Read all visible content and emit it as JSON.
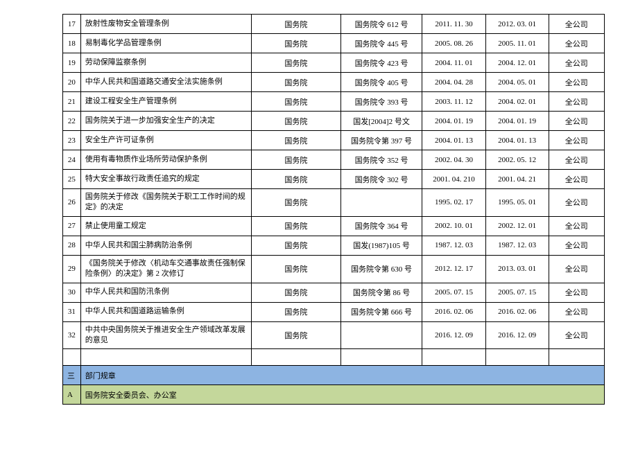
{
  "rows": [
    {
      "num": "17",
      "title": "放射性废物安全管理条例",
      "issuer": "国务院",
      "doc": "国务院令 612 号",
      "date1": "2011. 11. 30",
      "date2": "2012. 03. 01",
      "scope": "全公司"
    },
    {
      "num": "18",
      "title": "易制毒化学品管理条例",
      "issuer": "国务院",
      "doc": "国务院令 445 号",
      "date1": "2005. 08. 26",
      "date2": "2005. 11. 01",
      "scope": "全公司"
    },
    {
      "num": "19",
      "title": "劳动保障监察条例",
      "issuer": "国务院",
      "doc": "国务院令 423 号",
      "date1": "2004. 11. 01",
      "date2": "2004. 12. 01",
      "scope": "全公司"
    },
    {
      "num": "20",
      "title": "中华人民共和国道路交通安全法实施条例",
      "issuer": "国务院",
      "doc": "国务院令 405 号",
      "date1": "2004. 04. 28",
      "date2": "2004. 05. 01",
      "scope": "全公司"
    },
    {
      "num": "21",
      "title": "建设工程安全生产管理条例",
      "issuer": "国务院",
      "doc": "国务院令 393 号",
      "date1": "2003. 11. 12",
      "date2": "2004. 02. 01",
      "scope": "全公司"
    },
    {
      "num": "22",
      "title": "国务院关于进一步加强安全生产的决定",
      "issuer": "国务院",
      "doc": "国发[2004]2 号文",
      "date1": "2004. 01. 19",
      "date2": "2004. 01. 19",
      "scope": "全公司"
    },
    {
      "num": "23",
      "title": "安全生产许可证条例",
      "issuer": "国务院",
      "doc": "国务院令第 397 号",
      "date1": "2004. 01. 13",
      "date2": "2004. 01. 13",
      "scope": "全公司"
    },
    {
      "num": "24",
      "title": "使用有毒物质作业场所劳动保护条例",
      "issuer": "国务院",
      "doc": "国务院令 352 号",
      "date1": "2002. 04. 30",
      "date2": "2002. 05. 12",
      "scope": "全公司"
    },
    {
      "num": "25",
      "title": "特大安全事故行政责任追究的规定",
      "issuer": "国务院",
      "doc": "国务院令 302 号",
      "date1": "2001. 04. 210",
      "date2": "2001. 04. 21",
      "scope": "全公司"
    },
    {
      "num": "26",
      "title": "国务院关于修改《国务院关于职工工作时间的规定》的决定",
      "issuer": "国务院",
      "doc": "",
      "date1": "1995. 02. 17",
      "date2": "1995. 05. 01",
      "scope": "全公司"
    },
    {
      "num": "27",
      "title": "禁止使用童工规定",
      "issuer": "国务院",
      "doc": "国务院令 364 号",
      "date1": "2002. 10. 01",
      "date2": "2002. 12. 01",
      "scope": "全公司"
    },
    {
      "num": "28",
      "title": "中华人民共和国尘肺病防治条例",
      "issuer": "国务院",
      "doc": "国发(1987)105 号",
      "date1": "1987. 12. 03",
      "date2": "1987. 12. 03",
      "scope": "全公司"
    },
    {
      "num": "29",
      "title": "《国务院关于修改〈机动车交通事故责任强制保险条例〉的决定》第 2 次修订",
      "issuer": "国务院",
      "doc": "国务院令第 630 号",
      "date1": "2012. 12. 17",
      "date2": "2013. 03. 01",
      "scope": "全公司"
    },
    {
      "num": "30",
      "title": "中华人民共和国防汛条例",
      "issuer": "国务院",
      "doc": "国务院令第 86 号",
      "date1": "2005. 07. 15",
      "date2": "2005. 07. 15",
      "scope": "全公司"
    },
    {
      "num": "31",
      "title": "中华人民共和国道路运输条例",
      "issuer": "国务院",
      "doc": "国务院令第 666 号",
      "date1": "2016. 02. 06",
      "date2": "2016. 02. 06",
      "scope": "全公司"
    },
    {
      "num": "32",
      "title": "中共中央国务院关于推进安全生产领域改革发展的意见",
      "issuer": "国务院",
      "doc": "",
      "date1": "2016. 12. 09",
      "date2": "2016. 12. 09",
      "scope": "全公司"
    }
  ],
  "section_blue": {
    "num": "三",
    "title": "部门规章"
  },
  "section_green": {
    "num": "A",
    "title": "国务院安全委员会、办公室"
  }
}
